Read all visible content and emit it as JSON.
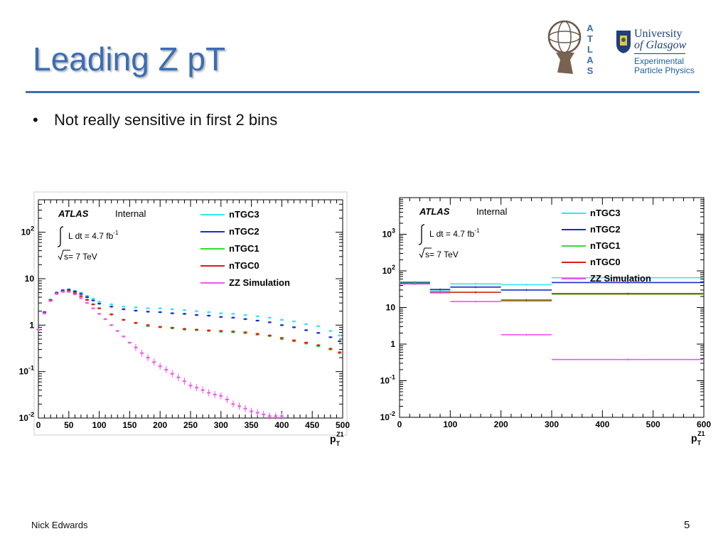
{
  "slide": {
    "title": "Leading Z pT",
    "bullet": "Not really sensitive in first 2 bins",
    "footer_author": "Nick Edwards",
    "page_number": "5"
  },
  "logos": {
    "atlas_letters": "ATLAS",
    "uog_line1": "University",
    "uog_line2": "of Glasgow",
    "uog_sub1": "Experimental",
    "uog_sub2": "Particle Physics"
  },
  "colors": {
    "title": "#3b6db4",
    "rule": "#3d6fae",
    "nTGC3": "#33e6e6",
    "nTGC2": "#1a2ec9",
    "nTGC1": "#33dd33",
    "nTGC0": "#e01a1a",
    "ZZ": "#ee55ee"
  },
  "chart_data": [
    {
      "type": "scatter",
      "yscale": "log",
      "xlim": [
        0,
        500
      ],
      "ylim": [
        0.01,
        500
      ],
      "xticks": [
        0,
        50,
        100,
        150,
        200,
        250,
        300,
        350,
        400,
        450,
        500
      ],
      "yticks": [
        {
          "value": 0.01,
          "base": "10",
          "exp": "-2"
        },
        {
          "value": 0.1,
          "base": "10",
          "exp": "-1"
        },
        {
          "value": 1,
          "base": "1",
          "exp": ""
        },
        {
          "value": 10,
          "base": "10",
          "exp": ""
        },
        {
          "value": 100,
          "base": "10",
          "exp": "2"
        }
      ],
      "xlabel_main": "p",
      "xlabel_sub": "T",
      "xlabel_sup": "Z1",
      "atlas": "ATLAS",
      "internal": "Internal",
      "lumi_text": "L dt = 4.7 fb",
      "lumi_exp": "-1",
      "energy_text": "s= 7 TeV",
      "series": [
        {
          "name": "nTGC3",
          "x": [
            0,
            10,
            20,
            30,
            40,
            50,
            60,
            70,
            80,
            90,
            100,
            120,
            140,
            160,
            180,
            200,
            220,
            240,
            260,
            280,
            300,
            320,
            340,
            360,
            380,
            400,
            420,
            440,
            460,
            480,
            495
          ],
          "values": [
            0.8,
            1.9,
            3.5,
            5.0,
            5.7,
            5.9,
            5.5,
            5.0,
            4.3,
            3.7,
            3.2,
            2.8,
            2.5,
            2.4,
            2.3,
            2.3,
            2.2,
            2.1,
            2.0,
            1.9,
            1.8,
            1.75,
            1.65,
            1.55,
            1.45,
            1.3,
            1.2,
            1.05,
            0.95,
            0.75,
            0.6
          ]
        },
        {
          "name": "nTGC2",
          "x": [
            0,
            10,
            20,
            30,
            40,
            50,
            60,
            70,
            80,
            90,
            100,
            120,
            140,
            160,
            180,
            200,
            220,
            240,
            260,
            280,
            300,
            320,
            340,
            360,
            380,
            400,
            420,
            440,
            460,
            480,
            495
          ],
          "values": [
            0.8,
            1.9,
            3.5,
            5.0,
            5.6,
            5.8,
            5.3,
            4.7,
            4.0,
            3.4,
            2.9,
            2.5,
            2.2,
            2.05,
            1.95,
            1.9,
            1.8,
            1.75,
            1.65,
            1.6,
            1.5,
            1.45,
            1.35,
            1.25,
            1.15,
            1.0,
            0.9,
            0.78,
            0.68,
            0.55,
            0.45
          ]
        },
        {
          "name": "nTGC1",
          "x": [
            0,
            10,
            20,
            30,
            40,
            50,
            60,
            70,
            80,
            90,
            100,
            120,
            140,
            160,
            180,
            200,
            220,
            240,
            260,
            280,
            300,
            320,
            340,
            360,
            380,
            400,
            420,
            440,
            460,
            480,
            495
          ],
          "values": [
            0.8,
            1.8,
            3.4,
            4.8,
            5.3,
            5.4,
            4.9,
            4.2,
            3.5,
            2.8,
            2.3,
            1.7,
            1.3,
            1.1,
            0.95,
            0.9,
            0.85,
            0.8,
            0.78,
            0.75,
            0.72,
            0.7,
            0.67,
            0.62,
            0.58,
            0.5,
            0.45,
            0.4,
            0.35,
            0.3,
            0.25
          ]
        },
        {
          "name": "nTGC0",
          "x": [
            0,
            10,
            20,
            30,
            40,
            50,
            60,
            70,
            80,
            90,
            100,
            120,
            140,
            160,
            180,
            200,
            220,
            240,
            260,
            280,
            300,
            320,
            340,
            360,
            380,
            400,
            420,
            440,
            460,
            480,
            495
          ],
          "values": [
            0.8,
            1.8,
            3.4,
            4.8,
            5.3,
            5.4,
            4.9,
            4.2,
            3.5,
            2.8,
            2.3,
            1.7,
            1.3,
            1.12,
            1.0,
            0.92,
            0.88,
            0.83,
            0.8,
            0.77,
            0.75,
            0.73,
            0.7,
            0.65,
            0.6,
            0.53,
            0.47,
            0.42,
            0.37,
            0.31,
            0.26
          ]
        },
        {
          "name": "ZZ Simulation",
          "x": [
            0,
            10,
            20,
            30,
            40,
            50,
            60,
            70,
            80,
            90,
            100,
            110,
            120,
            130,
            140,
            150,
            160,
            170,
            180,
            190,
            200,
            210,
            220,
            230,
            240,
            250,
            260,
            270,
            280,
            290,
            300,
            310,
            320,
            330,
            340,
            350,
            360,
            370,
            380,
            390,
            400
          ],
          "values": [
            0.8,
            1.8,
            3.3,
            4.7,
            5.2,
            5.2,
            4.6,
            3.8,
            3.0,
            2.3,
            1.75,
            1.35,
            1.0,
            0.75,
            0.57,
            0.42,
            0.33,
            0.25,
            0.2,
            0.16,
            0.13,
            0.11,
            0.09,
            0.075,
            0.062,
            0.05,
            0.045,
            0.04,
            0.035,
            0.032,
            0.03,
            0.025,
            0.02,
            0.018,
            0.016,
            0.014,
            0.013,
            0.012,
            0.011,
            0.011,
            0.011
          ]
        }
      ]
    },
    {
      "type": "step",
      "yscale": "log",
      "xlim": [
        0,
        600
      ],
      "ylim": [
        0.01,
        10000
      ],
      "xticks": [
        0,
        100,
        200,
        300,
        400,
        500,
        600
      ],
      "yticks": [
        {
          "value": 0.01,
          "base": "10",
          "exp": "-2"
        },
        {
          "value": 0.1,
          "base": "10",
          "exp": "-1"
        },
        {
          "value": 1,
          "base": "1",
          "exp": ""
        },
        {
          "value": 10,
          "base": "10",
          "exp": ""
        },
        {
          "value": 100,
          "base": "10",
          "exp": "2"
        },
        {
          "value": 1000,
          "base": "10",
          "exp": "3"
        }
      ],
      "xlabel_main": "p",
      "xlabel_sub": "T",
      "xlabel_sup": "Z1",
      "atlas": "ATLAS",
      "internal": "Internal",
      "lumi_text": "L dt = 4.7 fb",
      "lumi_exp": "-1",
      "energy_text": "s= 7 TeV",
      "bin_edges": [
        0,
        60,
        100,
        200,
        300,
        600
      ],
      "series": [
        {
          "name": "nTGC3",
          "values": [
            48,
            30,
            44,
            42,
            65
          ]
        },
        {
          "name": "nTGC2",
          "values": [
            47,
            31,
            36,
            30,
            48
          ]
        },
        {
          "name": "nTGC1",
          "values": [
            50,
            27,
            26,
            15,
            23
          ]
        },
        {
          "name": "nTGC0",
          "values": [
            44,
            26,
            26,
            16,
            24
          ]
        },
        {
          "name": "ZZ Simulation",
          "values": [
            44,
            25,
            14.5,
            1.8,
            0.38
          ]
        }
      ]
    }
  ]
}
